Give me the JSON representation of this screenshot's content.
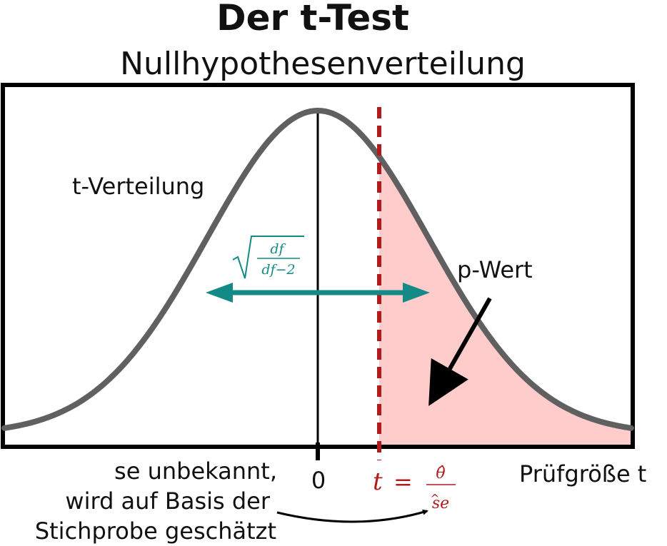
{
  "title": "Der t-Test",
  "subtitle": "Nullhypothesenverteilung",
  "labels": {
    "curve": "t-Verteilung",
    "p_value": "p-Wert",
    "zero": "0",
    "axis": "Prüfgröße t",
    "note_line1": "se unbekannt,",
    "note_line2": "wird auf Basis der",
    "note_line3": "Stichprobe geschätzt"
  },
  "formula_t": {
    "lhs": "t",
    "eq": "=",
    "num": "θ̂",
    "den": "se",
    "den_hat": "^"
  },
  "formula_width": {
    "num": "df",
    "den": "df−2"
  },
  "colors": {
    "curve": "#606060",
    "frame": "#000000",
    "tail_fill": "#ffcccc",
    "t_line": "#b01c1c",
    "width_arrow": "#138a86",
    "pointer": "#000000"
  },
  "chart_data": {
    "type": "area",
    "distribution": "t",
    "center": 0,
    "x_tick": [
      0
    ],
    "t_observed_sd": 1,
    "shaded_region": "right tail beyond t"
  }
}
